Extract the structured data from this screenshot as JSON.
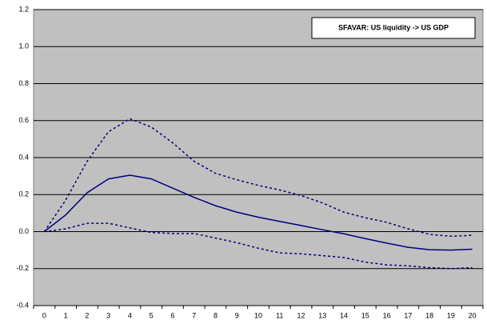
{
  "chart_data": {
    "type": "line",
    "title": "SFAVAR: US liquidity -> US GDP",
    "categories": [
      "0",
      "1",
      "2",
      "3",
      "4",
      "5",
      "6",
      "7",
      "8",
      "9",
      "10",
      "11",
      "12",
      "13",
      "14",
      "15",
      "16",
      "17",
      "18",
      "19",
      "20"
    ],
    "series": [
      {
        "color": "#000080",
        "dashed": false,
        "values": [
          0,
          0.09,
          0.21,
          0.285,
          0.305,
          0.285,
          0.235,
          0.185,
          0.14,
          0.105,
          0.078,
          0.055,
          0.033,
          0.01,
          -0.012,
          -0.038,
          -0.062,
          -0.085,
          -0.098,
          -0.1,
          -0.095
        ]
      },
      {
        "color": "#000080",
        "dashed": true,
        "values": [
          0,
          0.17,
          0.38,
          0.54,
          0.61,
          0.565,
          0.48,
          0.38,
          0.315,
          0.28,
          0.25,
          0.225,
          0.195,
          0.155,
          0.105,
          0.075,
          0.05,
          0.015,
          -0.015,
          -0.025,
          -0.02
        ]
      },
      {
        "color": "#000080",
        "dashed": true,
        "values": [
          0,
          0.015,
          0.045,
          0.045,
          0.02,
          -0.005,
          -0.01,
          -0.01,
          -0.035,
          -0.06,
          -0.09,
          -0.115,
          -0.12,
          -0.13,
          -0.14,
          -0.165,
          -0.18,
          -0.185,
          -0.195,
          -0.2,
          -0.195
        ]
      }
    ],
    "ylim": [
      -0.4,
      1.2
    ],
    "yticks": [
      -0.4,
      -0.2,
      {
        "value": 0,
        "label": "0.0"
      },
      0.2,
      0.4,
      0.6,
      0.8,
      {
        "value": 1,
        "label": "1.0"
      },
      1.2
    ],
    "grid": true,
    "plot_background": "#c0c0c0"
  }
}
